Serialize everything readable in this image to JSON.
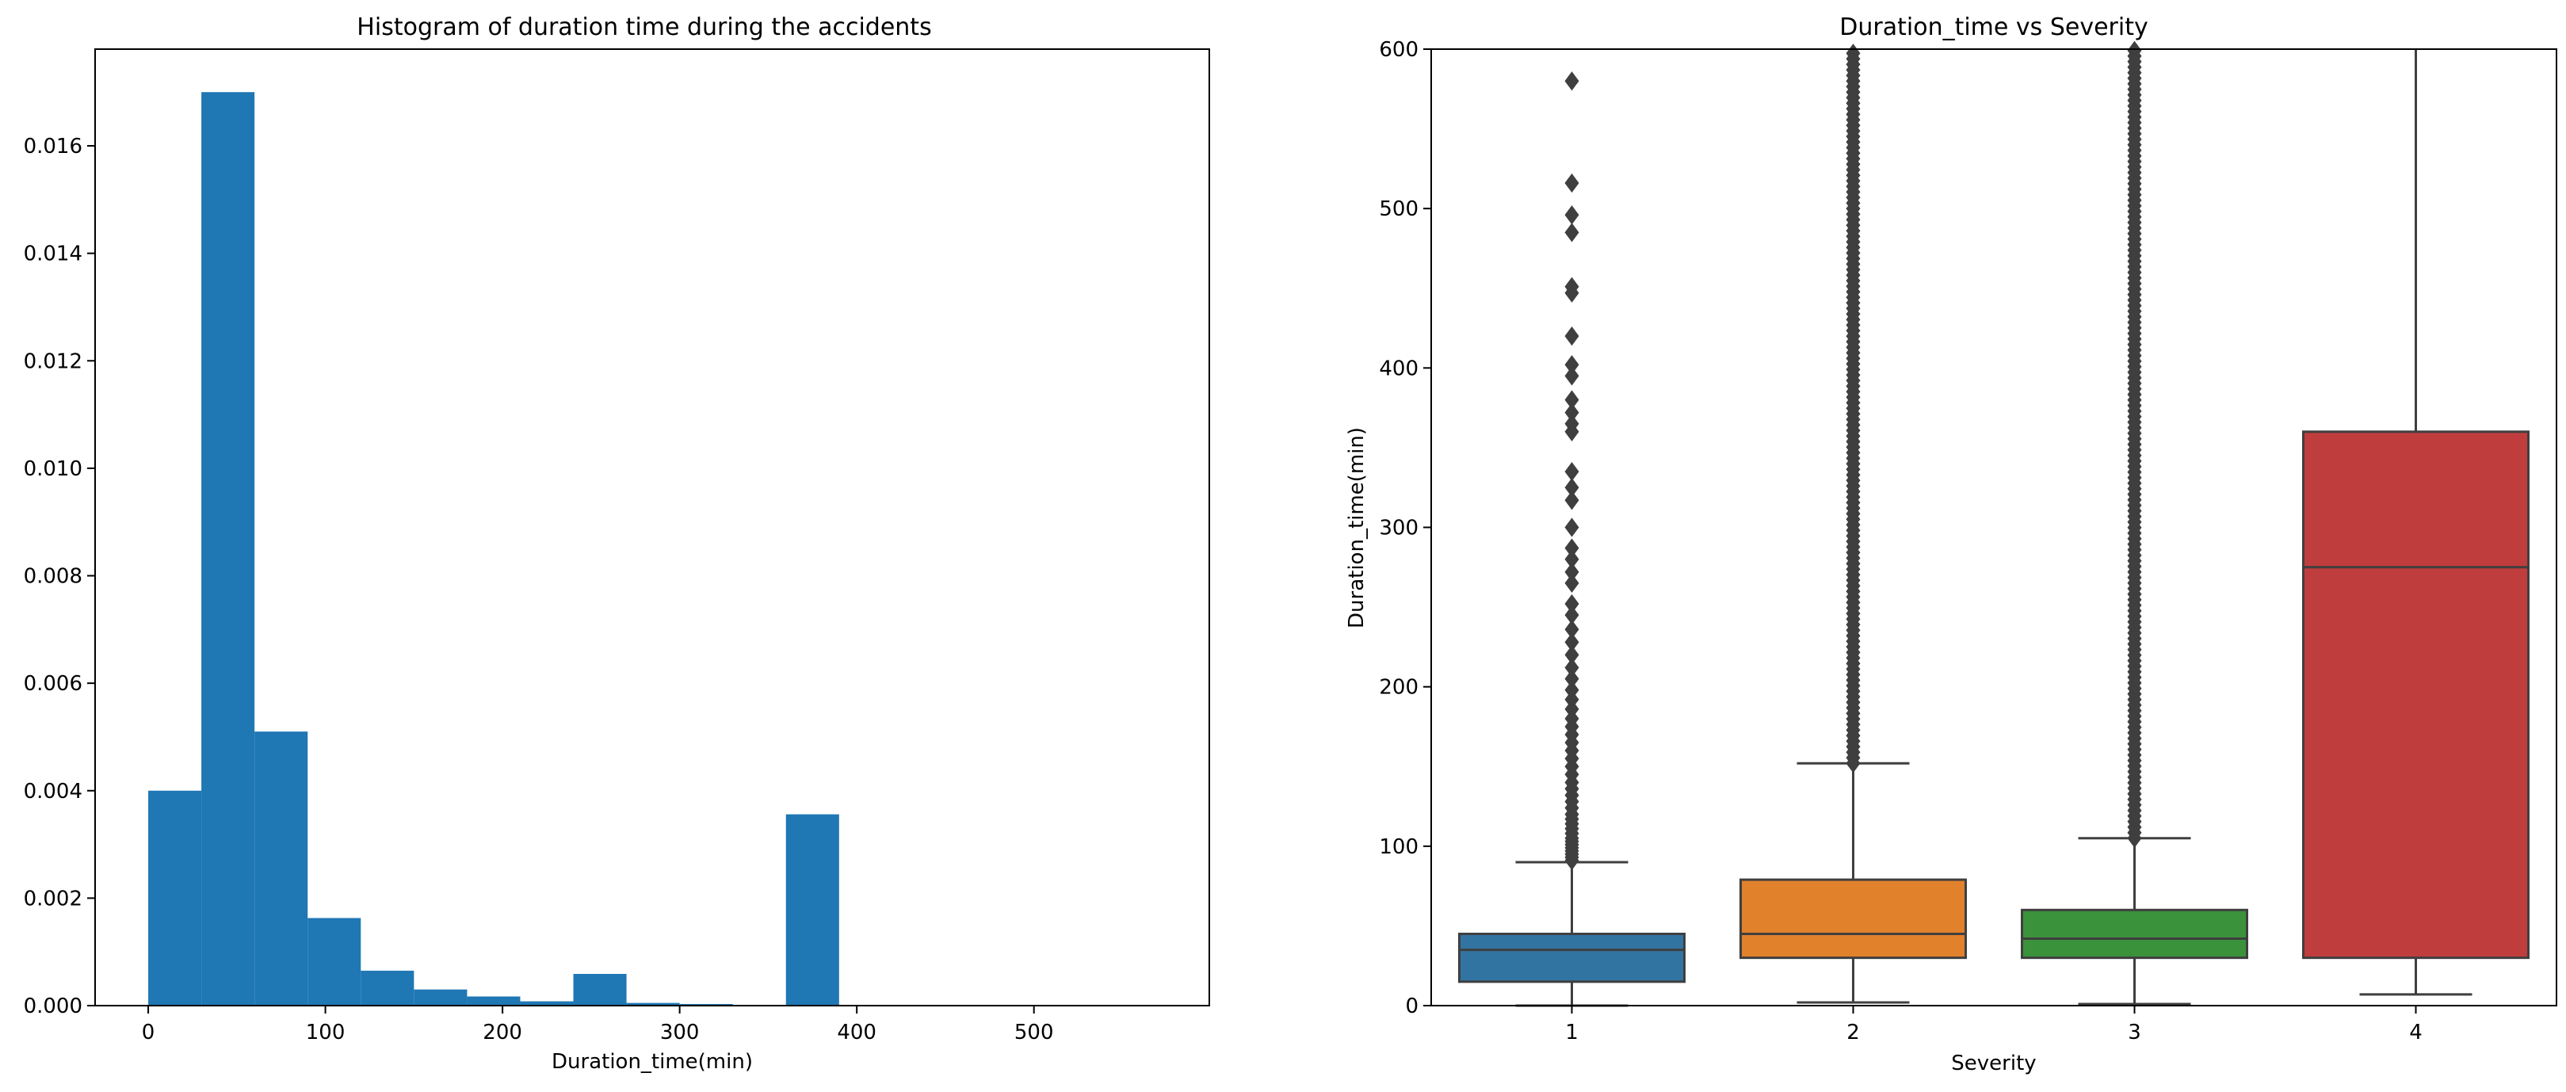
{
  "chart_data": [
    {
      "type": "bar",
      "title": "Histogram of duration time during the accidents",
      "xlabel": "Duration_time(min)",
      "ylabel": "",
      "xlim": [
        -30,
        599
      ],
      "ylim": [
        0,
        0.0178
      ],
      "xticks": [
        "0",
        "100",
        "200",
        "300",
        "400",
        "500"
      ],
      "yticks": [
        "0.000",
        "0.002",
        "0.004",
        "0.006",
        "0.008",
        "0.010",
        "0.012",
        "0.014",
        "0.016"
      ],
      "bin_width": 30,
      "bins": [
        {
          "x0": 0,
          "x1": 30,
          "value": 0.004
        },
        {
          "x0": 30,
          "x1": 60,
          "value": 0.017
        },
        {
          "x0": 60,
          "x1": 90,
          "value": 0.0051
        },
        {
          "x0": 90,
          "x1": 120,
          "value": 0.00163
        },
        {
          "x0": 120,
          "x1": 150,
          "value": 0.00065
        },
        {
          "x0": 150,
          "x1": 180,
          "value": 0.0003
        },
        {
          "x0": 180,
          "x1": 210,
          "value": 0.00017
        },
        {
          "x0": 210,
          "x1": 240,
          "value": 8e-05
        },
        {
          "x0": 240,
          "x1": 270,
          "value": 0.00059
        },
        {
          "x0": 270,
          "x1": 300,
          "value": 5e-05
        },
        {
          "x0": 300,
          "x1": 330,
          "value": 3e-05
        },
        {
          "x0": 330,
          "x1": 360,
          "value": 1e-05
        },
        {
          "x0": 360,
          "x1": 390,
          "value": 0.00356
        },
        {
          "x0": 390,
          "x1": 420,
          "value": 1e-05
        },
        {
          "x0": 420,
          "x1": 450,
          "value": 5e-06
        },
        {
          "x0": 450,
          "x1": 480,
          "value": 5e-06
        },
        {
          "x0": 480,
          "x1": 510,
          "value": 5e-06
        },
        {
          "x0": 510,
          "x1": 540,
          "value": 5e-06
        },
        {
          "x0": 540,
          "x1": 570,
          "value": 5e-06
        }
      ],
      "color": "#1f77b4"
    },
    {
      "type": "box",
      "title": "Duration_time vs Severity",
      "xlabel": "Severity",
      "ylabel": "Duration_time(min)",
      "ylim": [
        0,
        600
      ],
      "yticks": [
        "0",
        "100",
        "200",
        "300",
        "400",
        "500",
        "600"
      ],
      "categories": [
        "1",
        "2",
        "3",
        "4"
      ],
      "boxes": [
        {
          "category": "1",
          "whisker_low": 0,
          "q1": 15,
          "median": 35,
          "q3": 45,
          "whisker_high": 90,
          "color": "#3274a1",
          "outliers": [
            91,
            93,
            95,
            97,
            99,
            101,
            103,
            105,
            108,
            111,
            114,
            117,
            120,
            124,
            128,
            132,
            136,
            140,
            145,
            150,
            155,
            160,
            165,
            170,
            175,
            180,
            186,
            192,
            198,
            205,
            212,
            220,
            228,
            236,
            245,
            252,
            265,
            272,
            280,
            287,
            300,
            317,
            325,
            335,
            360,
            365,
            372,
            380,
            395,
            402,
            420,
            447,
            451,
            485,
            496,
            516,
            580
          ]
        },
        {
          "category": "2",
          "whisker_low": 2,
          "q1": 30,
          "median": 45,
          "q3": 79,
          "whisker_high": 152,
          "color": "#e1812c",
          "outlier_band": [
            152,
            600
          ]
        },
        {
          "category": "3",
          "whisker_low": 1,
          "q1": 30,
          "median": 42,
          "q3": 60,
          "whisker_high": 105,
          "color": "#3a923a",
          "outlier_band": [
            105,
            600
          ]
        },
        {
          "category": "4",
          "whisker_low": 7,
          "q1": 30,
          "median": 275,
          "q3": 360,
          "whisker_high": 600,
          "color": "#c03d3e",
          "outliers": []
        }
      ],
      "line_color": "#3f3f3f"
    }
  ]
}
